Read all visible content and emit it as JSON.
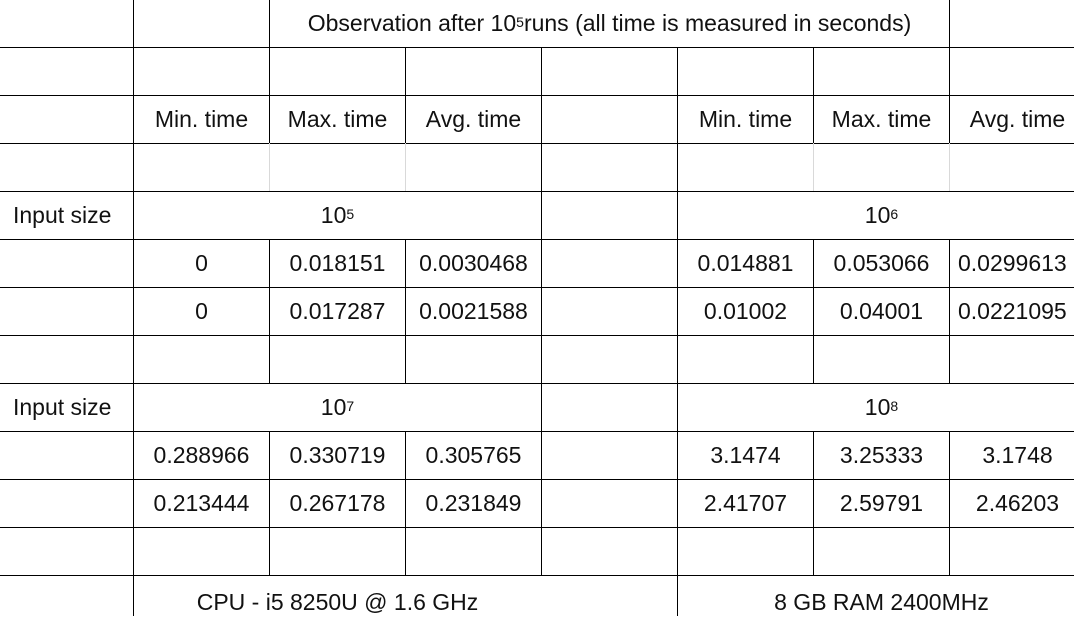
{
  "title": {
    "prefix": "Observation after 10",
    "exponent": "5",
    "suffix": " runs (all time is measured in seconds)"
  },
  "headers": {
    "left": [
      "Min. time",
      "Max. time",
      "Avg. time"
    ],
    "right": [
      "Min. time",
      "Max. time",
      "Avg. time"
    ]
  },
  "input_size_label": "Input size",
  "blocks": [
    {
      "left_size": {
        "base": "10",
        "exp": "5"
      },
      "right_size": {
        "base": "10",
        "exp": "6"
      },
      "rows": [
        {
          "left": [
            "0",
            "0.018151",
            "0.0030468"
          ],
          "right": [
            "0.014881",
            "0.053066",
            "0.0299613"
          ]
        },
        {
          "left": [
            "0",
            "0.017287",
            "0.0021588"
          ],
          "right": [
            "0.01002",
            "0.04001",
            "0.0221095"
          ]
        }
      ]
    },
    {
      "left_size": {
        "base": "10",
        "exp": "7"
      },
      "right_size": {
        "base": "10",
        "exp": "8"
      },
      "rows": [
        {
          "left": [
            "0.288966",
            "0.330719",
            "0.305765"
          ],
          "right": [
            "3.1474",
            "3.25333",
            "3.1748"
          ]
        },
        {
          "left": [
            "0.213444",
            "0.267178",
            "0.231849"
          ],
          "right": [
            "2.41707",
            "2.59791",
            "2.46203"
          ]
        }
      ]
    }
  ],
  "footer": {
    "left": "CPU - i5 8250U @ 1.6 GHz",
    "right": "8 GB RAM 2400MHz"
  }
}
